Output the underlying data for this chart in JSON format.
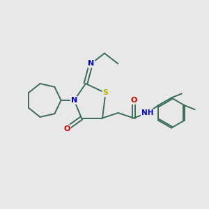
{
  "background_color": "#e8e8e8",
  "bond_color": "#3d6b5a",
  "atom_colors": {
    "S": "#b8b800",
    "N": "#0000cc",
    "O": "#cc0000",
    "C": "#000000"
  },
  "figsize": [
    3.0,
    3.0
  ],
  "dpi": 100
}
